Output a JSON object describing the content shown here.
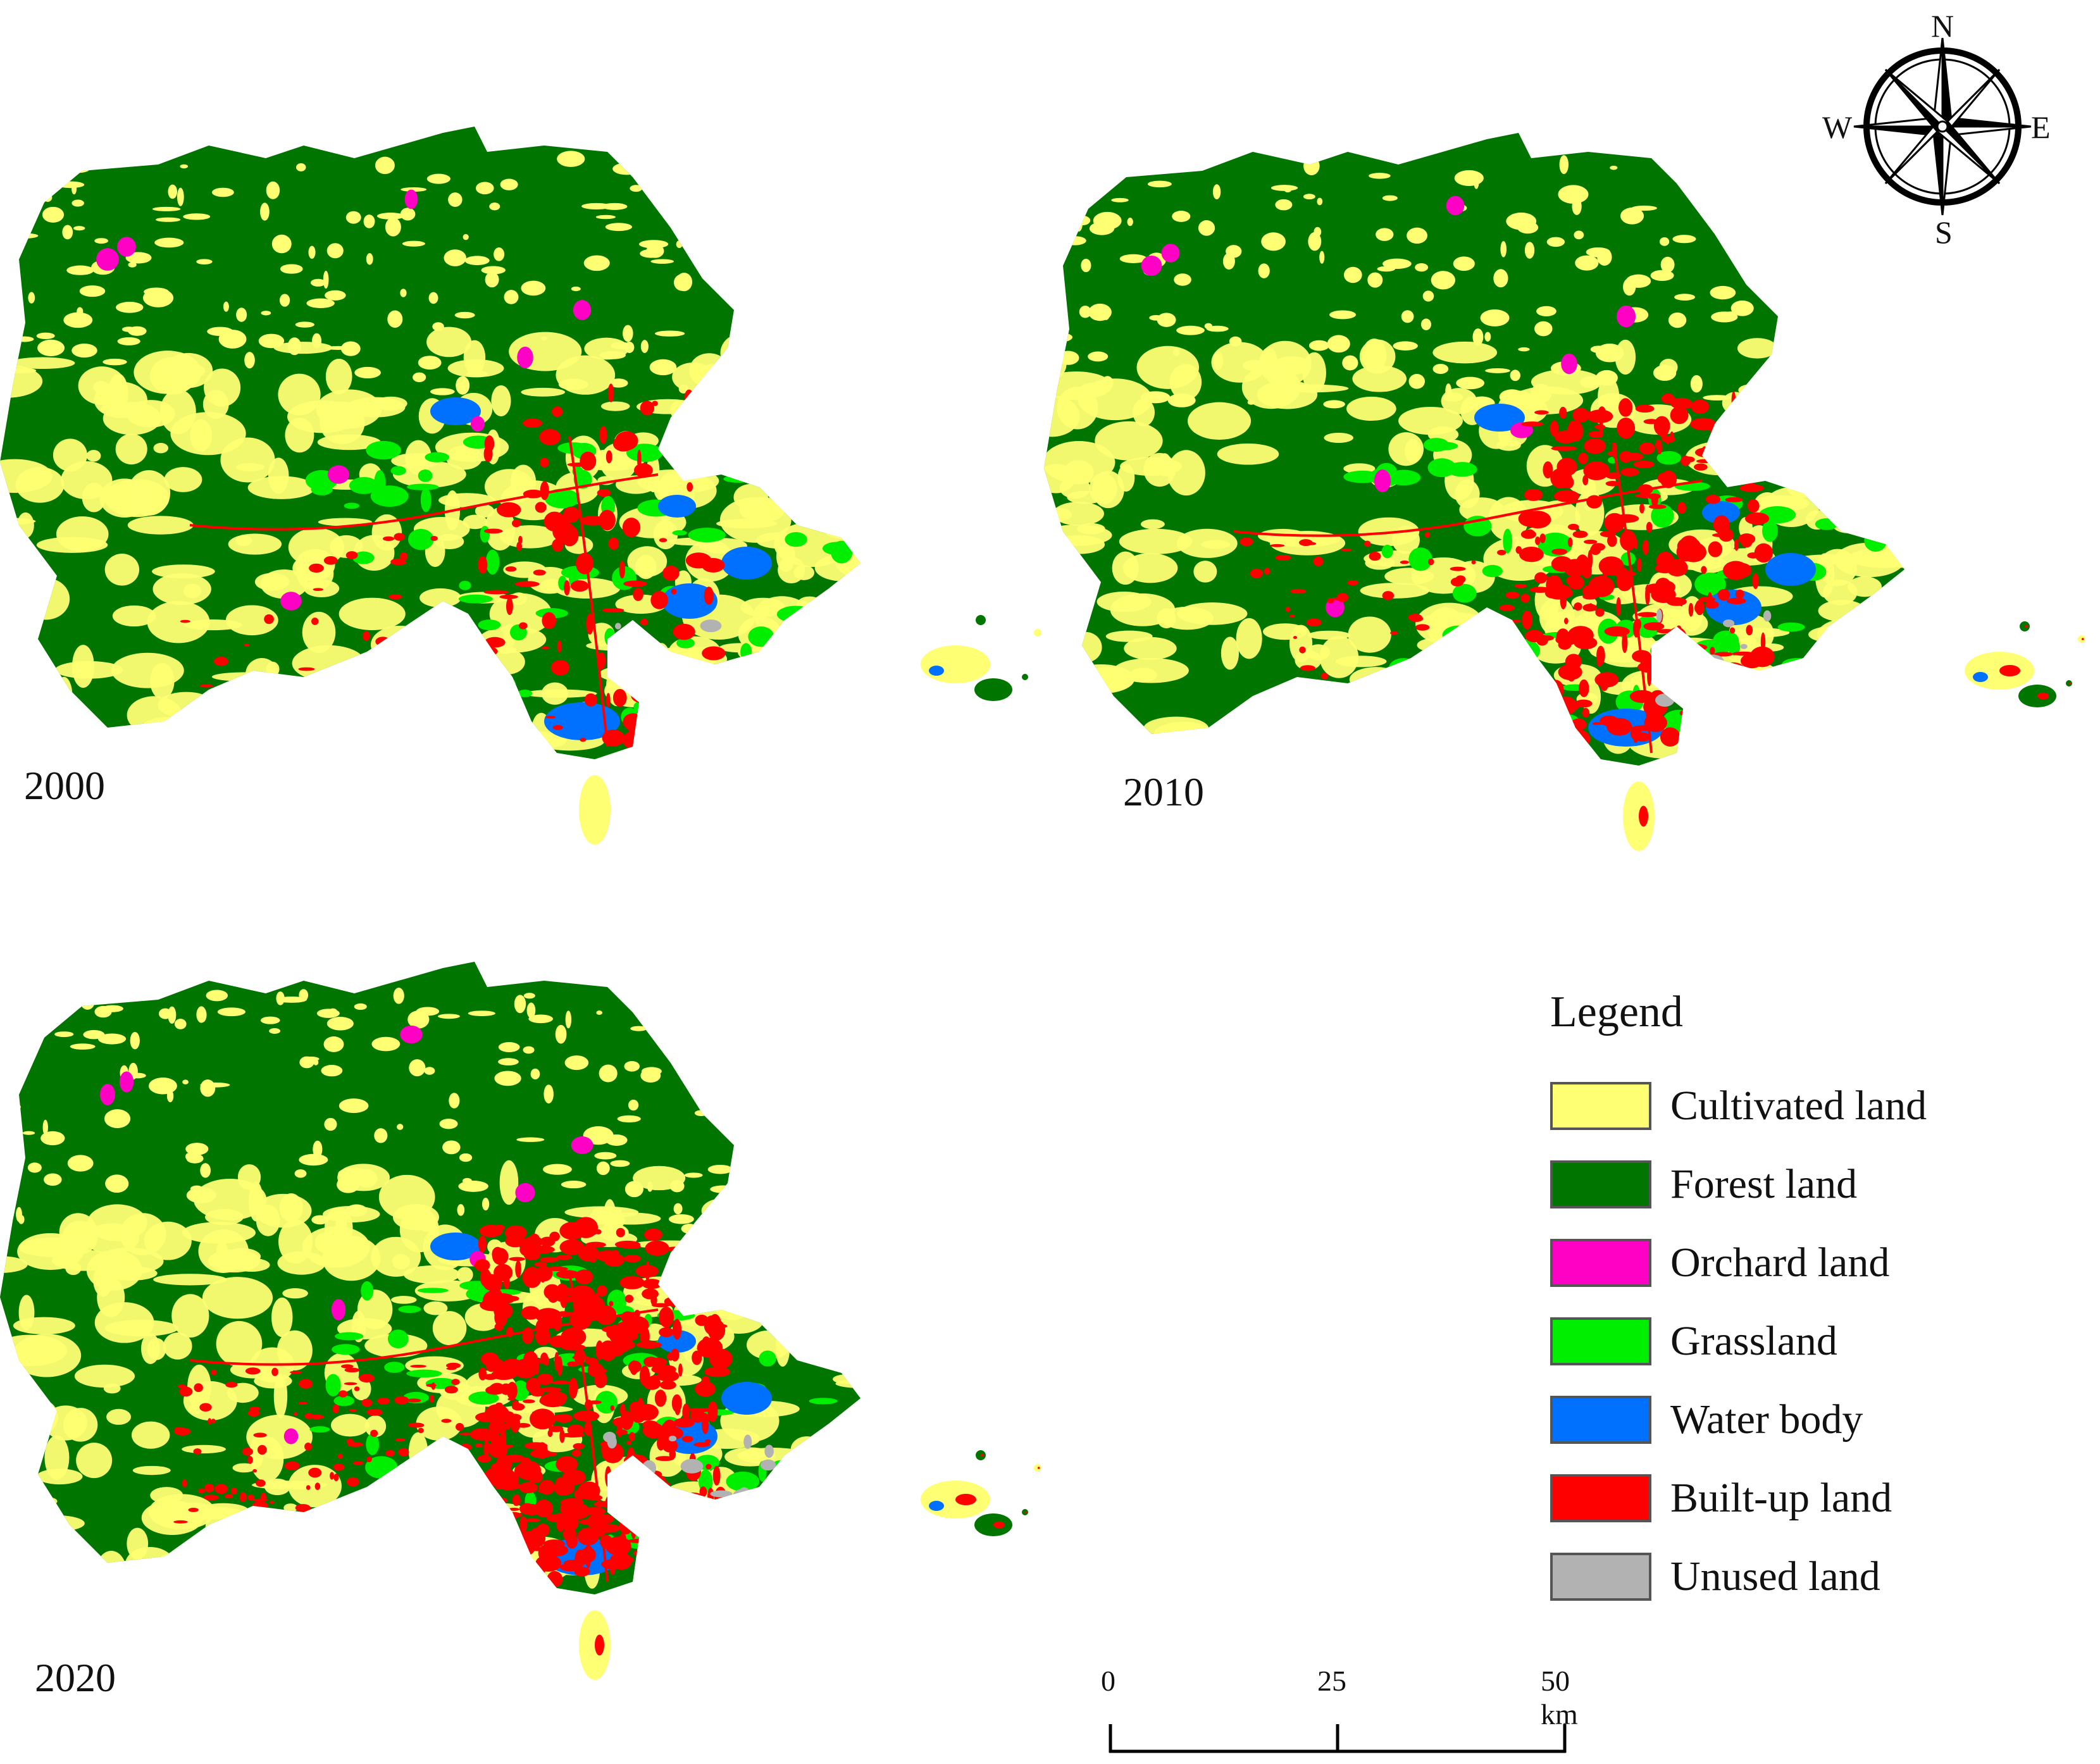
{
  "maps": [
    {
      "year": "2000"
    },
    {
      "year": "2010"
    },
    {
      "year": "2020"
    }
  ],
  "compass": {
    "north": "N",
    "south": "S",
    "east": "E",
    "west": "W"
  },
  "legend": {
    "title": "Legend",
    "items": [
      {
        "label": "Cultivated land",
        "color": "#ffff73"
      },
      {
        "label": "Forest land",
        "color": "#007500"
      },
      {
        "label": "Orchard land",
        "color": "#ff00c5"
      },
      {
        "label": "Grassland",
        "color": "#00ee00"
      },
      {
        "label": "Water body",
        "color": "#0070ff"
      },
      {
        "label": "Built-up land",
        "color": "#ff0000"
      },
      {
        "label": "Unused land",
        "color": "#b2b2b2"
      }
    ]
  },
  "scale_bar": {
    "ticks": [
      "0",
      "25",
      "50 km"
    ]
  }
}
